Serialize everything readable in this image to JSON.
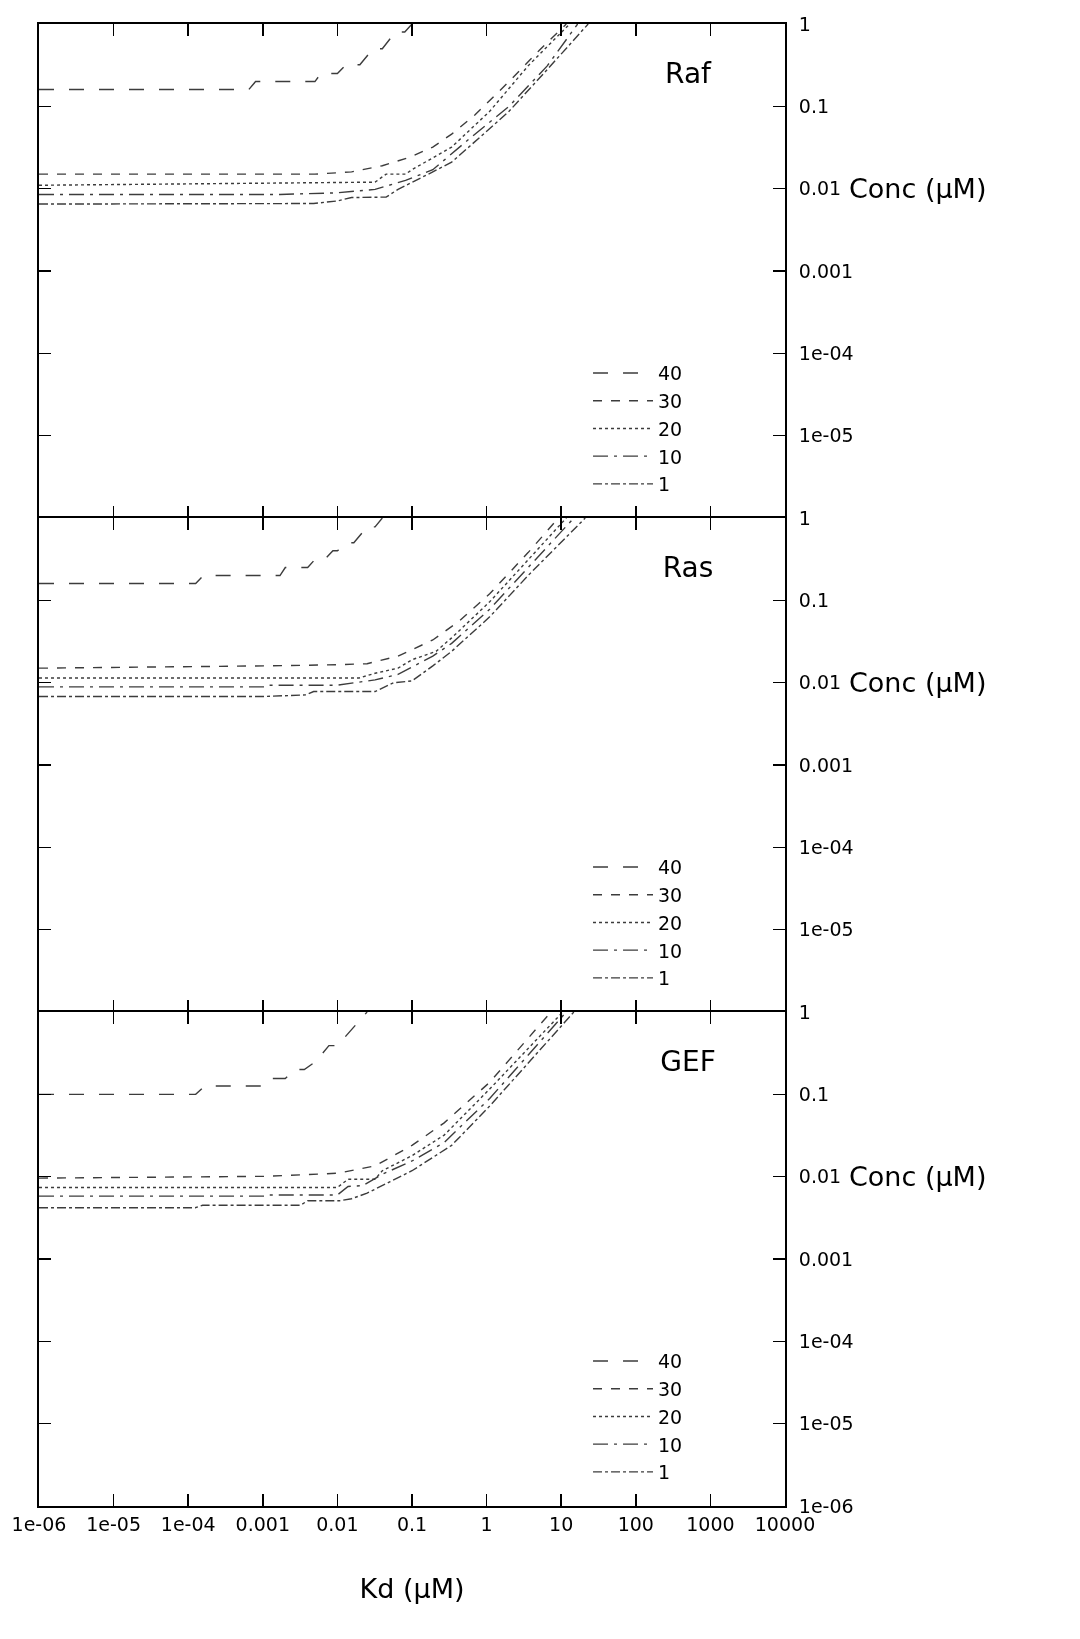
{
  "chart_data": [
    {
      "type": "line",
      "title": "Raf",
      "ylabel": "Conc (μM)",
      "log": "xy",
      "legend": "bottom right",
      "tick_labels": "y",
      "xlim": [
        1e-06,
        10000
      ],
      "xticks": [
        {
          "value": 1e-06,
          "label": null
        },
        {
          "value": 1e-05,
          "label": null
        },
        {
          "value": 0.0001,
          "label": null
        },
        {
          "value": 0.001,
          "label": null
        },
        {
          "value": 0.01,
          "label": null
        },
        {
          "value": 0.1,
          "label": null
        },
        {
          "value": 1,
          "label": null
        },
        {
          "value": 10,
          "label": null
        },
        {
          "value": 100,
          "label": null
        },
        {
          "value": 1000,
          "label": null
        },
        {
          "value": 10000,
          "label": null
        }
      ],
      "ylim": [
        1e-06,
        1
      ],
      "yticks": [
        1,
        0.1,
        0.01,
        0.001,
        {
          "value": 0.0001,
          "label": "1e-04"
        },
        {
          "value": 1e-05,
          "label": "1e-05"
        }
      ],
      "series": [
        {
          "name": "40",
          "color": "#3c3c3c",
          "line_style": "longdash",
          "x": [
            1e-06,
            0.00065,
            0.0008,
            0.005,
            0.006,
            0.01,
            0.013,
            0.02,
            0.03,
            0.04,
            0.06,
            0.08,
            0.1
          ],
          "values": [
            0.16,
            0.16,
            0.2,
            0.2,
            0.25,
            0.25,
            0.32,
            0.32,
            0.5,
            0.5,
            0.8,
            0.8,
            1
          ]
        },
        {
          "name": "30",
          "color": "#3c3c3c",
          "line_style": "dashed",
          "x": [
            1e-06,
            0.005,
            0.0155,
            0.04,
            0.092,
            0.19,
            0.34,
            0.69,
            2,
            5.1,
            11.7
          ],
          "values": [
            0.015,
            0.015,
            0.016,
            0.019,
            0.024,
            0.032,
            0.046,
            0.078,
            0.2,
            0.48,
            1
          ]
        },
        {
          "name": "20",
          "color": "#3c3c3c",
          "line_style": "dotted",
          "x": [
            1e-06,
            0.032,
            0.045,
            0.082,
            0.1,
            0.34,
            1.1,
            3.6,
            13
          ],
          "values": [
            0.011,
            0.012,
            0.015,
            0.015,
            0.017,
            0.032,
            0.087,
            0.31,
            1
          ]
        },
        {
          "name": "10",
          "color": "#3c3c3c",
          "line_style": "longdashdot",
          "x": [
            1e-06,
            0.0017,
            0.0097,
            0.032,
            0.082,
            0.19,
            0.6,
            2,
            6.5,
            16.6
          ],
          "values": [
            0.0085,
            0.0085,
            0.0089,
            0.0098,
            0.0126,
            0.017,
            0.041,
            0.1,
            0.31,
            1
          ]
        },
        {
          "name": "1",
          "color": "#3c3c3c",
          "line_style": "dashdot",
          "x": [
            1e-06,
            0.0048,
            0.01,
            0.0155,
            0.045,
            0.065,
            0.19,
            0.34,
            0.6,
            2,
            6.5,
            23
          ],
          "values": [
            0.0065,
            0.0066,
            0.0071,
            0.0078,
            0.0079,
            0.0098,
            0.016,
            0.021,
            0.033,
            0.087,
            0.28,
            1
          ]
        }
      ]
    },
    {
      "type": "line",
      "title": "Ras",
      "ylabel": "Conc (μM)",
      "log": "xy",
      "legend": "bottom right",
      "tick_labels": "y",
      "xlim": [
        1e-06,
        10000
      ],
      "xticks": [
        {
          "value": 1e-06,
          "label": null
        },
        {
          "value": 1e-05,
          "label": null
        },
        {
          "value": 0.0001,
          "label": null
        },
        {
          "value": 0.001,
          "label": null
        },
        {
          "value": 0.01,
          "label": null
        },
        {
          "value": 0.1,
          "label": null
        },
        {
          "value": 1,
          "label": null
        },
        {
          "value": 10,
          "label": null
        },
        {
          "value": 100,
          "label": null
        },
        {
          "value": 1000,
          "label": null
        },
        {
          "value": 10000,
          "label": null
        }
      ],
      "ylim": [
        1e-06,
        1
      ],
      "yticks": [
        1,
        0.1,
        0.01,
        0.001,
        {
          "value": 0.0001,
          "label": "1e-04"
        },
        {
          "value": 1e-05,
          "label": "1e-05"
        }
      ],
      "series": [
        {
          "name": "40",
          "color": "#3c3c3c",
          "line_style": "longdash",
          "x": [
            1e-06,
            0.000126,
            0.00016,
            0.0017,
            0.002,
            0.004,
            0.0051,
            0.0069,
            0.0087,
            0.01,
            0.0139,
            0.0166,
            0.025,
            0.032,
            0.04
          ],
          "values": [
            0.16,
            0.16,
            0.2,
            0.2,
            0.25,
            0.25,
            0.32,
            0.32,
            0.4,
            0.4,
            0.5,
            0.5,
            0.78,
            0.78,
            1
          ]
        },
        {
          "name": "30",
          "color": "#3c3c3c",
          "line_style": "dashed",
          "x": [
            1e-06,
            0.0011,
            0.0097,
            0.025,
            0.065,
            0.19,
            0.43,
            1.1,
            3.6,
            9.2
          ],
          "values": [
            0.015,
            0.016,
            0.0165,
            0.017,
            0.021,
            0.033,
            0.056,
            0.12,
            0.38,
            1
          ]
        },
        {
          "name": "20",
          "color": "#3c3c3c",
          "line_style": "dotted",
          "x": [
            1e-06,
            0.0195,
            0.032,
            0.065,
            0.1,
            0.21,
            0.34,
            1.1,
            3.6,
            11.7
          ],
          "values": [
            0.0114,
            0.0114,
            0.013,
            0.015,
            0.019,
            0.024,
            0.035,
            0.096,
            0.31,
            1
          ]
        },
        {
          "name": "10",
          "color": "#3c3c3c",
          "line_style": "longdashdot",
          "x": [
            1e-06,
            0.0011,
            0.0012,
            0.0097,
            0.032,
            0.065,
            0.19,
            0.34,
            1.1,
            3.6,
            14.8
          ],
          "values": [
            0.0089,
            0.0089,
            0.0093,
            0.0093,
            0.0108,
            0.0126,
            0.021,
            0.03,
            0.078,
            0.25,
            1
          ]
        },
        {
          "name": "1",
          "color": "#3c3c3c",
          "line_style": "dashdot",
          "x": [
            1e-06,
            0.00104,
            0.0038,
            0.0048,
            0.032,
            0.057,
            0.1,
            0.19,
            0.34,
            1.1,
            3.6,
            21
          ],
          "values": [
            0.0068,
            0.0068,
            0.0071,
            0.0078,
            0.0078,
            0.01,
            0.0105,
            0.016,
            0.024,
            0.063,
            0.2,
            1
          ]
        }
      ]
    },
    {
      "type": "line",
      "title": "GEF",
      "xlabel": "Kd (μM)",
      "ylabel": "Conc (μM)",
      "log": "xy",
      "legend": "bottom right",
      "xlim": [
        1e-06,
        10000
      ],
      "xticks": [
        {
          "value": 1e-06,
          "label": "1e-06"
        },
        {
          "value": 1e-05,
          "label": "1e-05"
        },
        {
          "value": 0.0001,
          "label": "1e-04"
        },
        0.001,
        0.01,
        0.1,
        1,
        10,
        100,
        1000,
        10000
      ],
      "ylim": [
        1e-06,
        1
      ],
      "yticks": [
        1,
        0.1,
        0.01,
        0.001,
        {
          "value": 0.0001,
          "label": "1e-04"
        },
        {
          "value": 1e-05,
          "label": "1e-05"
        },
        {
          "value": 1e-06,
          "label": "1e-06"
        }
      ],
      "series": [
        {
          "name": "40",
          "color": "#3c3c3c",
          "line_style": "longdash",
          "x": [
            1e-06,
            0.000126,
            0.000166,
            0.001,
            0.0013,
            0.002,
            0.0027,
            0.0036,
            0.0051,
            0.0077,
            0.01,
            0.025
          ],
          "values": [
            0.1,
            0.1,
            0.126,
            0.126,
            0.156,
            0.156,
            0.2,
            0.2,
            0.25,
            0.39,
            0.39,
            1
          ]
        },
        {
          "name": "30",
          "color": "#3c3c3c",
          "line_style": "dashed",
          "x": [
            1e-06,
            0.0011,
            0.01,
            0.032,
            0.1,
            0.27,
            1.1,
            7.3
          ],
          "values": [
            0.0096,
            0.0101,
            0.011,
            0.0135,
            0.024,
            0.045,
            0.14,
            1
          ]
        },
        {
          "name": "20",
          "color": "#3c3c3c",
          "line_style": "dotted",
          "x": [
            1e-06,
            0.01,
            0.0139,
            0.032,
            0.04,
            0.1,
            0.27,
            1.1,
            10.5
          ],
          "values": [
            0.0074,
            0.0074,
            0.0093,
            0.0093,
            0.0118,
            0.018,
            0.032,
            0.116,
            1
          ]
        },
        {
          "name": "10",
          "color": "#3c3c3c",
          "line_style": "longdashdot",
          "x": [
            1e-06,
            0.0011,
            0.0012,
            0.01,
            0.0139,
            0.022,
            0.04,
            0.1,
            0.27,
            1.1,
            11.7
          ],
          "values": [
            0.0058,
            0.0058,
            0.006,
            0.006,
            0.0076,
            0.0078,
            0.0107,
            0.0155,
            0.026,
            0.089,
            1
          ]
        },
        {
          "name": "1",
          "color": "#3c3c3c",
          "line_style": "dashdot",
          "x": [
            1e-06,
            0.000124,
            0.000156,
            0.0032,
            0.004,
            0.0107,
            0.0155,
            0.025,
            0.051,
            0.1,
            0.34,
            1.1,
            14.8
          ],
          "values": [
            0.0042,
            0.0042,
            0.0045,
            0.0045,
            0.0051,
            0.0051,
            0.0054,
            0.0063,
            0.0087,
            0.0118,
            0.024,
            0.072,
            1
          ]
        }
      ]
    }
  ]
}
